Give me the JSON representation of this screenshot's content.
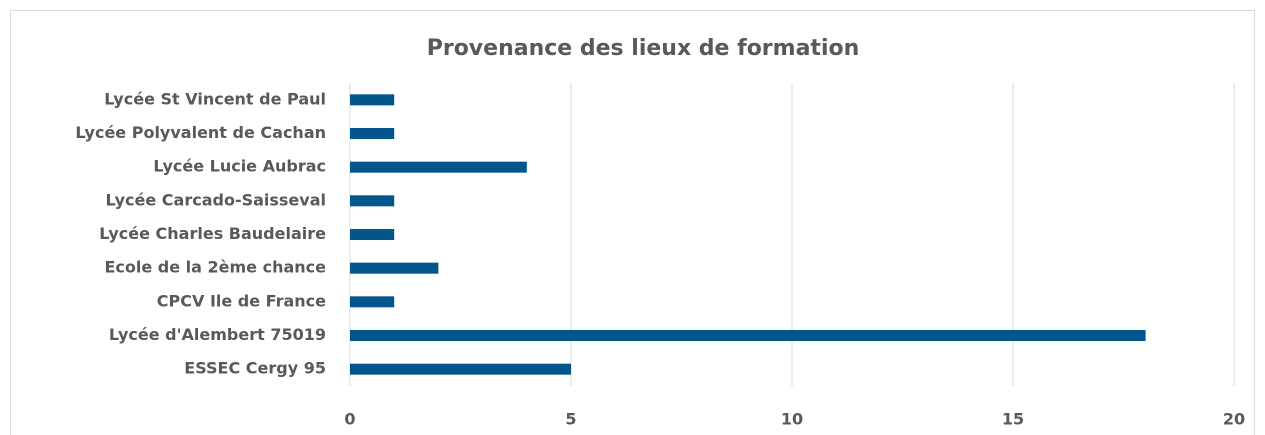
{
  "chart_data": {
    "type": "barh",
    "title": "Provenance des lieux de formation",
    "categories": [
      "Lycée St Vincent de Paul",
      "Lycée Polyvalent de Cachan",
      "Lycée Lucie Aubrac",
      "Lycée Carcado-Saisseval",
      "Lycée Charles Baudelaire",
      "Ecole de la 2ème chance",
      "CPCV Ile de France",
      "Lycée d'Alembert 75019",
      "ESSEC Cergy 95"
    ],
    "values": [
      1,
      1,
      4,
      1,
      1,
      2,
      1,
      18,
      5
    ],
    "color": "#03568c",
    "xlim": [
      0,
      20
    ],
    "xticks": [
      0,
      5,
      10,
      15,
      20
    ],
    "grid": true
  }
}
